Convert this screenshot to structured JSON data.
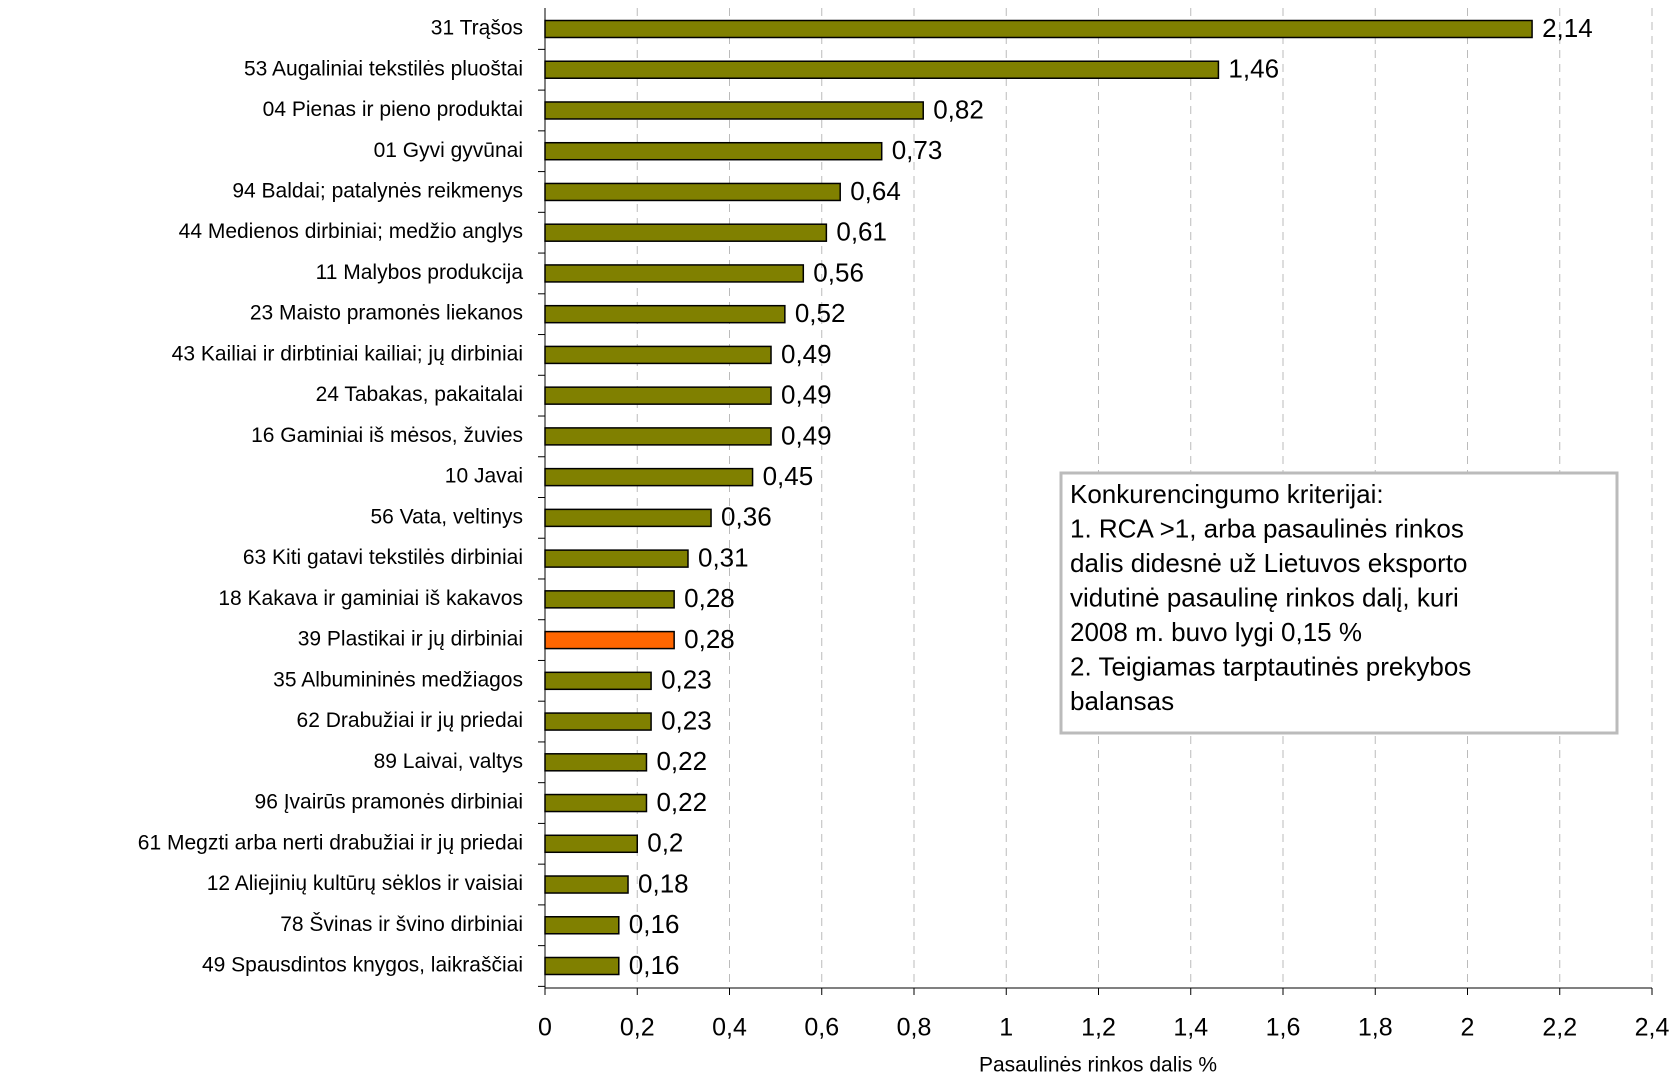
{
  "chart_data": {
    "type": "bar",
    "orientation": "horizontal",
    "x_label": "Pasaulinės rinkos dalis %",
    "categories": [
      "31 Trąšos",
      "53 Augaliniai tekstilės pluoštai",
      "04 Pienas ir pieno produktai",
      "01 Gyvi gyvūnai",
      "94 Baldai; patalynės reikmenys",
      "44 Medienos dirbiniai; medžio anglys",
      "11 Malybos produkcija",
      "23 Maisto pramonės liekanos",
      "43 Kailiai ir dirbtiniai kailiai; jų dirbiniai",
      "24 Tabakas, pakaitalai",
      "16 Gaminiai iš mėsos, žuvies",
      "10 Javai",
      "56 Vata, veltinys",
      "63 Kiti gatavi tekstilės dirbiniai",
      "18 Kakava ir gaminiai iš kakavos",
      "39 Plastikai ir jų dirbiniai",
      "35 Albumininės medžiagos",
      "62 Drabužiai ir jų priedai",
      "89 Laivai, valtys",
      "96 Įvairūs pramonės dirbiniai",
      "61 Megzti arba nerti drabužiai ir jų priedai",
      "12 Aliejinių kultūrų sėklos ir vaisiai",
      "78 Švinas ir švino dirbiniai",
      "49 Spausdintos knygos, laikraščiai"
    ],
    "values": [
      2.14,
      1.46,
      0.82,
      0.73,
      0.64,
      0.61,
      0.56,
      0.52,
      0.49,
      0.49,
      0.49,
      0.45,
      0.36,
      0.31,
      0.28,
      0.28,
      0.23,
      0.23,
      0.22,
      0.22,
      0.2,
      0.18,
      0.16,
      0.16
    ],
    "value_labels": [
      "2,14",
      "1,46",
      "0,82",
      "0,73",
      "0,64",
      "0,61",
      "0,56",
      "0,52",
      "0,49",
      "0,49",
      "0,49",
      "0,45",
      "0,36",
      "0,31",
      "0,28",
      "0,28",
      "0,23",
      "0,23",
      "0,22",
      "0,22",
      "0,2",
      "0,18",
      "0,16",
      "0,16"
    ],
    "colors": [
      "#808000",
      "#808000",
      "#808000",
      "#808000",
      "#808000",
      "#808000",
      "#808000",
      "#808000",
      "#808000",
      "#808000",
      "#808000",
      "#808000",
      "#808000",
      "#808000",
      "#808000",
      "#ff6600",
      "#808000",
      "#808000",
      "#808000",
      "#808000",
      "#808000",
      "#808000",
      "#808000",
      "#808000"
    ],
    "xlim": [
      0,
      2.4
    ],
    "xticks": [
      0,
      {
        "value": 0.2,
        "label": "0,2"
      },
      {
        "value": 0.4,
        "label": "0,4"
      },
      {
        "value": 0.6,
        "label": "0,6"
      },
      {
        "value": 0.8,
        "label": "0,8"
      },
      1,
      {
        "value": 1.2,
        "label": "1,2"
      },
      {
        "value": 1.4,
        "label": "1,4"
      },
      {
        "value": 1.6,
        "label": "1,6"
      },
      {
        "value": 1.8,
        "label": "1,8"
      },
      2,
      {
        "value": 2.2,
        "label": "2,2"
      },
      {
        "value": 2.4,
        "label": "2,4"
      }
    ],
    "grid": true,
    "annotation": [
      "Konkurencingumo kriterijai:",
      "1. RCA >1, arba pasaulinės rinkos",
      "dalis didesnė už Lietuvos eksporto",
      "vidutinė pasaulinę rinkos dalį, kuri",
      "2008 m. buvo lygi 0,15 %",
      "2. Teigiamas tarptautinės prekybos",
      "balansas"
    ]
  }
}
